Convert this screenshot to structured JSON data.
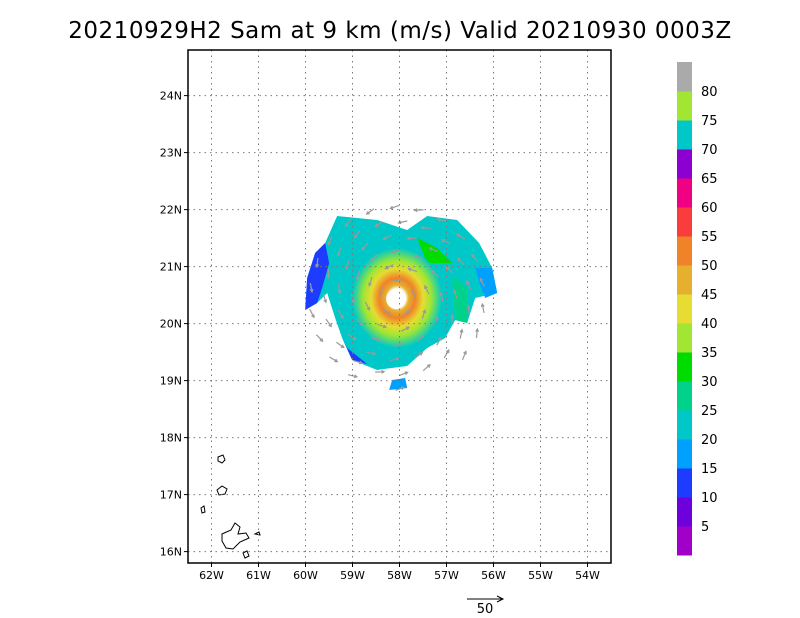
{
  "title": "20210929H2 Sam at 9 km (m/s) Valid 20210930  0003Z",
  "map": {
    "lon_range": [
      -62.5,
      -53.5
    ],
    "lat_range": [
      15.8,
      24.8
    ],
    "grid": "dotted",
    "lon_ticks": [
      "62W",
      "61W",
      "60W",
      "59W",
      "58W",
      "57W",
      "56W",
      "55W",
      "54W"
    ],
    "lat_ticks": [
      "24N",
      "23N",
      "22N",
      "21N",
      "20N",
      "19N",
      "18N",
      "17N",
      "16N"
    ],
    "storm_center": {
      "lon": -58.05,
      "lat": 20.45
    },
    "vector_scale_label": "50"
  },
  "colorbar": {
    "labels": [
      "5",
      "10",
      "15",
      "20",
      "25",
      "30",
      "35",
      "40",
      "45",
      "50",
      "55",
      "60",
      "65",
      "70",
      "75",
      "80"
    ],
    "colors": [
      "#a000c8",
      "#6e00dc",
      "#1e3cff",
      "#00a0ff",
      "#00c8c8",
      "#00d28c",
      "#00dc00",
      "#a0e632",
      "#e6dc32",
      "#e6af2d",
      "#f08228",
      "#fa3c3c",
      "#f00082",
      "#8c00d2",
      "#00c8c8",
      "#a0e632",
      "#aaaaaa"
    ]
  }
}
